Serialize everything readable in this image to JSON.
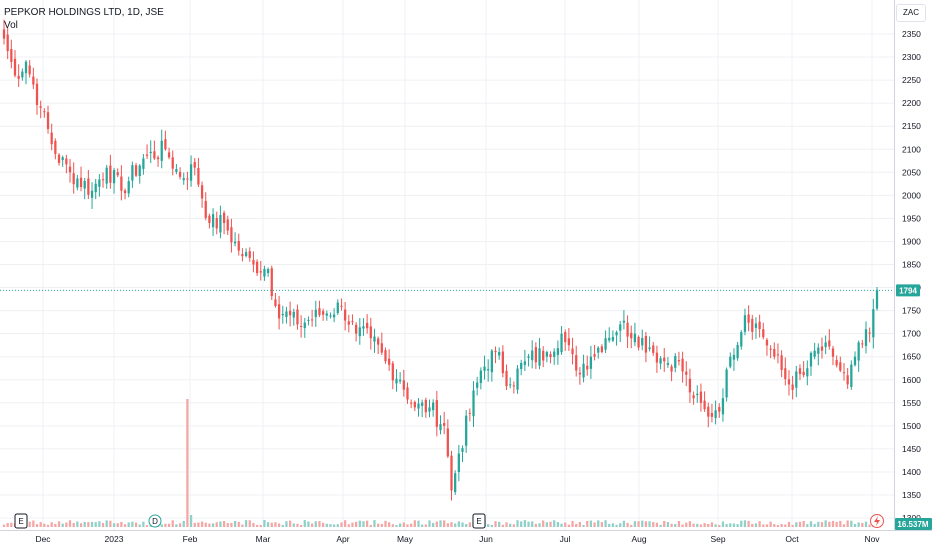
{
  "header": {
    "symbol_title": "PEPKOR HOLDINGS LTD, 1D, JSE",
    "volume_label": "Vol",
    "currency_button": "ZAC"
  },
  "colors": {
    "up": "#26a69a",
    "down": "#ef5350",
    "up_volume": "#8fd0c9",
    "down_volume": "#f4a6a4",
    "grid": "#eef0f4",
    "price_line": "#26a69a"
  },
  "chart_data": {
    "type": "candlestick",
    "title": "PEPKOR HOLDINGS LTD, 1D, JSE",
    "currency": "ZAC",
    "ylim": [
      1280,
      2375
    ],
    "y_ticks": [
      1300,
      1350,
      1400,
      1450,
      1500,
      1550,
      1600,
      1650,
      1700,
      1750,
      1800,
      1850,
      1900,
      1950,
      2000,
      2050,
      2100,
      2150,
      2200,
      2250,
      2300,
      2350
    ],
    "x_ticks": [
      "Dec",
      "2023",
      "Feb",
      "Mar",
      "Apr",
      "May",
      "Jun",
      "Jul",
      "Aug",
      "Sep",
      "Oct",
      "Nov"
    ],
    "last_price": "1794",
    "last_volume": "16.537M",
    "grid": true,
    "events": [
      {
        "label": "E",
        "category": "Dec"
      },
      {
        "label": "D",
        "category": "2023"
      },
      {
        "label": "E",
        "category": "Jun"
      }
    ],
    "anchors": [
      {
        "d": 0,
        "c": 2340
      },
      {
        "d": 3,
        "c": 2260
      },
      {
        "d": 6,
        "c": 2290
      },
      {
        "d": 10,
        "c": 2190
      },
      {
        "d": 14,
        "c": 2090
      },
      {
        "d": 18,
        "c": 2050
      },
      {
        "d": 24,
        "c": 2010
      },
      {
        "d": 28,
        "c": 2060
      },
      {
        "d": 32,
        "c": 2010
      },
      {
        "d": 38,
        "c": 2080
      },
      {
        "d": 44,
        "c": 2100
      },
      {
        "d": 48,
        "c": 2040
      },
      {
        "d": 52,
        "c": 2060
      },
      {
        "d": 56,
        "c": 1940
      },
      {
        "d": 60,
        "c": 1940
      },
      {
        "d": 64,
        "c": 1880
      },
      {
        "d": 68,
        "c": 1850
      },
      {
        "d": 72,
        "c": 1840
      },
      {
        "d": 74,
        "c": 1760
      },
      {
        "d": 80,
        "c": 1720
      },
      {
        "d": 86,
        "c": 1740
      },
      {
        "d": 92,
        "c": 1760
      },
      {
        "d": 96,
        "c": 1700
      },
      {
        "d": 100,
        "c": 1690
      },
      {
        "d": 104,
        "c": 1640
      },
      {
        "d": 108,
        "c": 1600
      },
      {
        "d": 112,
        "c": 1540
      },
      {
        "d": 116,
        "c": 1540
      },
      {
        "d": 120,
        "c": 1500
      },
      {
        "d": 122,
        "c": 1360
      },
      {
        "d": 124,
        "c": 1440
      },
      {
        "d": 130,
        "c": 1620
      },
      {
        "d": 134,
        "c": 1660
      },
      {
        "d": 138,
        "c": 1590
      },
      {
        "d": 142,
        "c": 1640
      },
      {
        "d": 148,
        "c": 1660
      },
      {
        "d": 152,
        "c": 1700
      },
      {
        "d": 156,
        "c": 1620
      },
      {
        "d": 160,
        "c": 1650
      },
      {
        "d": 164,
        "c": 1690
      },
      {
        "d": 168,
        "c": 1720
      },
      {
        "d": 172,
        "c": 1700
      },
      {
        "d": 176,
        "c": 1670
      },
      {
        "d": 180,
        "c": 1640
      },
      {
        "d": 184,
        "c": 1640
      },
      {
        "d": 188,
        "c": 1560
      },
      {
        "d": 192,
        "c": 1520
      },
      {
        "d": 196,
        "c": 1560
      },
      {
        "d": 198,
        "c": 1650
      },
      {
        "d": 202,
        "c": 1740
      },
      {
        "d": 206,
        "c": 1710
      },
      {
        "d": 210,
        "c": 1650
      },
      {
        "d": 214,
        "c": 1590
      },
      {
        "d": 218,
        "c": 1610
      },
      {
        "d": 222,
        "c": 1670
      },
      {
        "d": 226,
        "c": 1650
      },
      {
        "d": 230,
        "c": 1590
      },
      {
        "d": 232,
        "c": 1650
      },
      {
        "d": 236,
        "c": 1700
      },
      {
        "d": 238,
        "c": 1794
      }
    ]
  }
}
